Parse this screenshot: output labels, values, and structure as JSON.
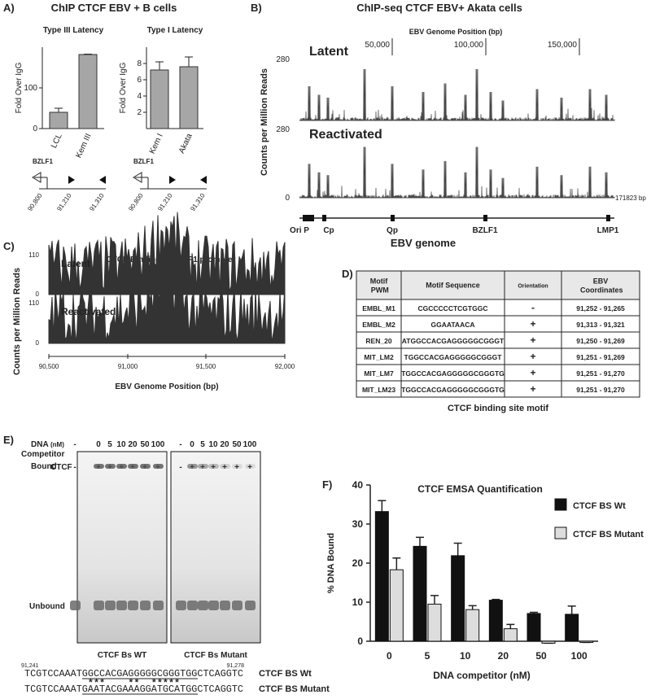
{
  "panel_a": {
    "label": "A)",
    "title": "ChIP CTCF EBV + B cells",
    "gene_maps": [
      {
        "gene": "BZLF1",
        "coords": [
          "90,800",
          "91,210",
          "91,310"
        ]
      },
      {
        "gene": "BZLF1",
        "coords": [
          "90,800",
          "91,210",
          "91,310"
        ]
      }
    ]
  },
  "panel_b": {
    "label": "B)",
    "title": "ChIP-seq CTCF EBV+ Akata cells",
    "axis_title": "EBV Genome Position (bp)",
    "positions": [
      "50,000",
      "100,000",
      "150,000"
    ],
    "y_label": "Counts per Million Reads",
    "tracks": [
      {
        "name": "Latent",
        "max": "280"
      },
      {
        "name": "Reactivated",
        "max": "280",
        "min": "0"
      }
    ],
    "end": "171823 bp",
    "features": [
      "Ori P",
      "Cp",
      "Qp",
      "BZLF1",
      "LMP1"
    ],
    "genome_label": "EBV genome"
  },
  "panel_c": {
    "label": "C)",
    "title": "CTCF Binding at BZLF1 promoter",
    "y_label": "Counts per Million Reads",
    "tracks": [
      {
        "name": "Latent",
        "max": "110",
        "min": "0"
      },
      {
        "name": "Reactivated",
        "max": "110",
        "min": "0"
      }
    ],
    "positions": [
      "90,500",
      "91,000",
      "91,500",
      "92,000"
    ],
    "x_label": "EBV Genome Position (bp)"
  },
  "panel_d": {
    "label": "D)",
    "header": [
      "Motif PWM",
      "Motif Sequence",
      "Orientation",
      "EBV Coordinates"
    ],
    "rows": [
      [
        "EMBL_M1",
        "CGCCCCCTCGTGGC",
        "-",
        "91,252 - 91,265"
      ],
      [
        "EMBL_M2",
        "GGAATAACA",
        "+",
        "91,313 - 91,321"
      ],
      [
        "REN_20",
        "ATGGCCACGAGGGGGCGGGT",
        "+",
        "91,250 - 91,269"
      ],
      [
        "MIT_LM2",
        "TGGCCACGAGGGGGCGGGT",
        "+",
        "91,251 - 91,269"
      ],
      [
        "MIT_LM7",
        "TGGCCACGAGGGGGCGGGTG",
        "+",
        "91,251 - 91,270"
      ],
      [
        "MIT_LM23",
        "TGGCCACGAGGGGGCGGGTG",
        "+",
        "91,251 - 91,270"
      ]
    ],
    "caption": "CTCF binding site motif"
  },
  "panel_e": {
    "label": "E)",
    "dna_label": "DNA",
    "unit": "(nM)",
    "competitor_label": "Competitor",
    "ctcf_label": "CTCF",
    "gels": [
      {
        "doses": [
          "-",
          "0",
          "5",
          "10",
          "20",
          "50",
          "100"
        ],
        "ctcf": [
          "-",
          "+",
          "+",
          "+",
          "+",
          "+",
          "+"
        ],
        "caption": "CTCF Bs WT"
      },
      {
        "doses": [
          "-",
          "0",
          "5",
          "10",
          "20",
          "50",
          "100"
        ],
        "ctcf": [
          "-",
          "+",
          "+",
          "+",
          "+",
          "+",
          "+"
        ],
        "caption": "CTCF Bs Mutant"
      }
    ],
    "bound": "Bound",
    "unbound": "Unbound",
    "start": "91,241",
    "end": "91,278",
    "wt_seq": "TCGTCCAAATGGCCACGAGGGGGCGGGTGGCTCAGGTC",
    "wt_label": "CTCF BS Wt",
    "stars": "           ***    **  *****",
    "mut_seq": "TCGTCCAAATGAATACGAAAGGATGCATGGCTCAGGTC",
    "mut_label": "CTCF BS Mutant"
  },
  "panel_f": {
    "label": "F)"
  },
  "chart_data": [
    {
      "type": "bar",
      "title": "Type III Latency",
      "y_label": "Fold Over IgG",
      "categories": [
        "LCL",
        "Kem III"
      ],
      "values": [
        40,
        182
      ],
      "errors": [
        10,
        1
      ],
      "color": "#a6a6a6",
      "ylim": [
        0,
        200
      ],
      "yticks": [
        0,
        100
      ]
    },
    {
      "type": "bar",
      "title": "Type I Latency",
      "y_label": "Fold Over IgG",
      "categories": [
        "Kem I",
        "Akata"
      ],
      "values": [
        7.2,
        7.6
      ],
      "errors": [
        1.0,
        1.2
      ],
      "color": "#a6a6a6",
      "ylim": [
        0,
        10
      ],
      "yticks": [
        2,
        4,
        6,
        8
      ]
    },
    {
      "type": "bar",
      "title": "CTCF EMSA Quantification",
      "x_label": "DNA competitor (nM)",
      "y_label": "% DNA Bound",
      "categories": [
        "0",
        "5",
        "10",
        "20",
        "50",
        "100"
      ],
      "series": [
        {
          "name": "CTCF BS Wt",
          "color": "#111111",
          "values": [
            33.2,
            24.3,
            21.9,
            10.5,
            7.1,
            6.9
          ],
          "errors": [
            2.8,
            2.3,
            3.2,
            0.2,
            0.3,
            2.1
          ]
        },
        {
          "name": "CTCF BS Mutant",
          "color": "#dddddd",
          "values": [
            18.3,
            9.5,
            8.1,
            3.2,
            -0.5,
            -0.3
          ],
          "errors": [
            3.0,
            2.2,
            1.0,
            1.1,
            0,
            0
          ]
        }
      ],
      "ylim": [
        0,
        40
      ],
      "yticks": [
        0,
        10,
        20,
        30,
        40
      ],
      "legend": "upper right"
    }
  ]
}
